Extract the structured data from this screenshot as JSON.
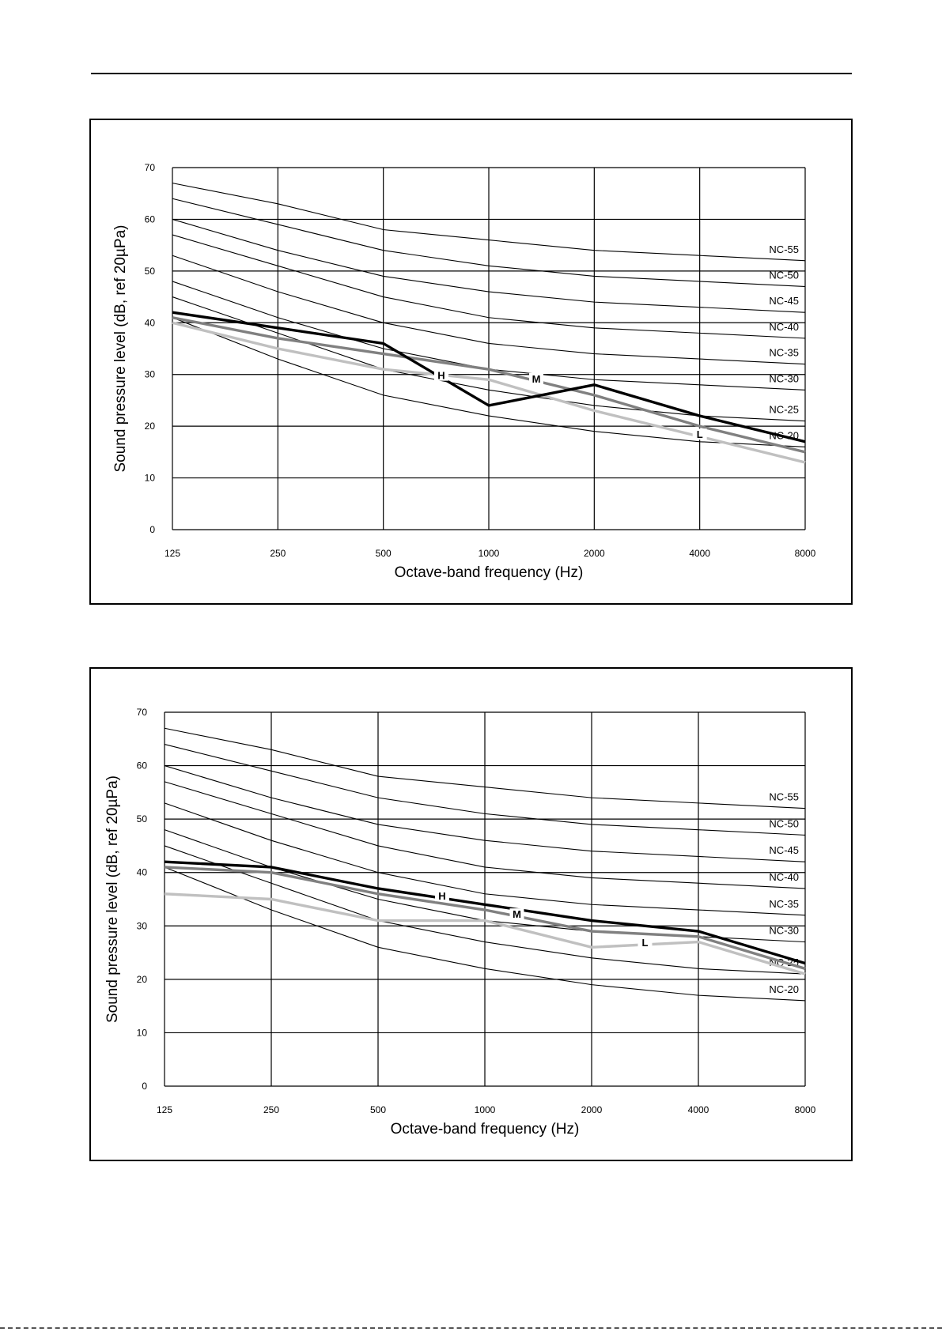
{
  "chart_data": [
    {
      "type": "line",
      "xlabel": "Octave-band frequency (Hz)",
      "ylabel": "Sound pressure level (dB, ref 20µPa)",
      "x": [
        125,
        250,
        500,
        1000,
        2000,
        4000,
        8000
      ],
      "x_tick_labels": [
        "125",
        "250",
        "500",
        "1000",
        "2000",
        "4000",
        "8000"
      ],
      "x_scale": "log2",
      "y_ticks": [
        0,
        10,
        20,
        30,
        40,
        50,
        60,
        70
      ],
      "ylim": [
        0,
        70
      ],
      "grid": true,
      "nc_curves": [
        {
          "name": "NC-55",
          "values": [
            67,
            63,
            58,
            56,
            54,
            53,
            52
          ]
        },
        {
          "name": "NC-50",
          "values": [
            64,
            59,
            54,
            51,
            49,
            48,
            47
          ]
        },
        {
          "name": "NC-45",
          "values": [
            60,
            54,
            49,
            46,
            44,
            43,
            42
          ]
        },
        {
          "name": "NC-40",
          "values": [
            57,
            51,
            45,
            41,
            39,
            38,
            37
          ]
        },
        {
          "name": "NC-35",
          "values": [
            53,
            46,
            40,
            36,
            34,
            33,
            32
          ]
        },
        {
          "name": "NC-30",
          "values": [
            48,
            41,
            35,
            31,
            29,
            28,
            27
          ]
        },
        {
          "name": "NC-25",
          "values": [
            45,
            38,
            31,
            27,
            24,
            22,
            21
          ]
        },
        {
          "name": "NC-20",
          "values": [
            41,
            33,
            26,
            22,
            19,
            17,
            16
          ]
        }
      ],
      "series": [
        {
          "name": "H",
          "color": "#000000",
          "values": [
            42,
            39,
            36,
            24,
            28,
            22,
            17
          ]
        },
        {
          "name": "M",
          "color": "#808080",
          "values": [
            41,
            37,
            34,
            31,
            26,
            20,
            15
          ]
        },
        {
          "name": "L",
          "color": "#c0c0c0",
          "values": [
            40,
            35,
            31,
            29,
            23,
            18,
            13
          ]
        }
      ]
    },
    {
      "type": "line",
      "xlabel": "Octave-band frequency (Hz)",
      "ylabel": "Sound pressure level (dB, ref 20µPa)",
      "x": [
        125,
        250,
        500,
        1000,
        2000,
        4000,
        8000
      ],
      "x_tick_labels": [
        "125",
        "250",
        "500",
        "1000",
        "2000",
        "4000",
        "8000"
      ],
      "x_scale": "log2",
      "y_ticks": [
        0,
        10,
        20,
        30,
        40,
        50,
        60,
        70
      ],
      "ylim": [
        0,
        70
      ],
      "grid": true,
      "nc_curves": [
        {
          "name": "NC-55",
          "values": [
            67,
            63,
            58,
            56,
            54,
            53,
            52
          ]
        },
        {
          "name": "NC-50",
          "values": [
            64,
            59,
            54,
            51,
            49,
            48,
            47
          ]
        },
        {
          "name": "NC-45",
          "values": [
            60,
            54,
            49,
            46,
            44,
            43,
            42
          ]
        },
        {
          "name": "NC-40",
          "values": [
            57,
            51,
            45,
            41,
            39,
            38,
            37
          ]
        },
        {
          "name": "NC-35",
          "values": [
            53,
            46,
            40,
            36,
            34,
            33,
            32
          ]
        },
        {
          "name": "NC-30",
          "values": [
            48,
            41,
            35,
            31,
            29,
            28,
            27
          ]
        },
        {
          "name": "NC-25",
          "values": [
            45,
            38,
            31,
            27,
            24,
            22,
            21
          ]
        },
        {
          "name": "NC-20",
          "values": [
            41,
            33,
            26,
            22,
            19,
            17,
            16
          ]
        }
      ],
      "series": [
        {
          "name": "H",
          "color": "#000000",
          "values": [
            42,
            41,
            37,
            34,
            31,
            29,
            23
          ]
        },
        {
          "name": "M",
          "color": "#808080",
          "values": [
            41,
            40,
            36,
            33,
            29,
            28,
            22
          ]
        },
        {
          "name": "L",
          "color": "#c0c0c0",
          "values": [
            36,
            35,
            31,
            31,
            26,
            27,
            21
          ]
        }
      ]
    }
  ]
}
